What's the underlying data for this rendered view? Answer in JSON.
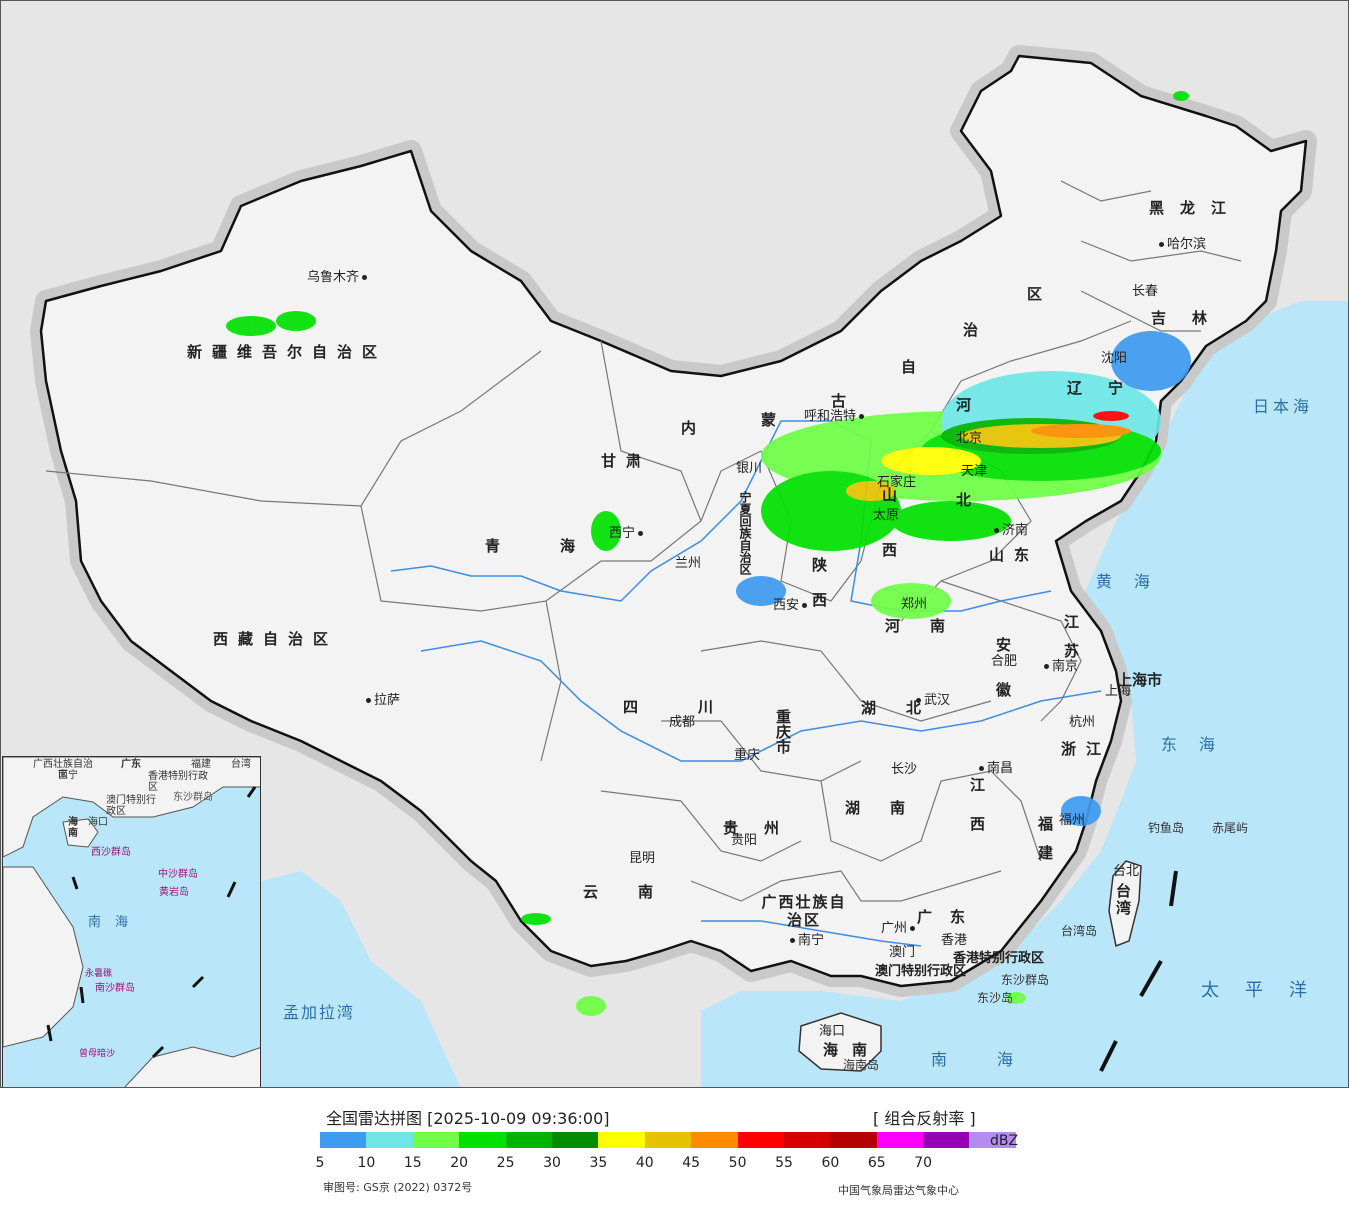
{
  "map": {
    "cities": {
      "urumqi": "乌鲁木齐",
      "lhasa": "拉萨",
      "xining": "西宁",
      "lanzhou": "兰州",
      "yinchuan": "银川",
      "hohhot": "呼和浩特",
      "beijing": "北京",
      "tianjin": "天津",
      "shijiazhuang": "石家庄",
      "taiyuan": "太原",
      "jinan": "济南",
      "zhengzhou": "郑州",
      "xian": "西安",
      "chengdu": "成都",
      "chongqing": "重庆",
      "wuhan": "武汉",
      "hefei": "合肥",
      "nanjing": "南京",
      "shanghai": "上海",
      "hangzhou": "杭州",
      "nanchang": "南昌",
      "changsha": "长沙",
      "guiyang": "贵阳",
      "kunming": "昆明",
      "nanning": "南宁",
      "guangzhou": "广州",
      "hongkong": "香港",
      "macau": "澳门",
      "haikou": "海口",
      "fuzhou": "福州",
      "taipei": "台北",
      "shenyang": "沈阳",
      "changchun": "长春",
      "harbin": "哈尔滨"
    },
    "provinces": {
      "xinjiang": "新疆维吾尔自治区",
      "tibet": "西藏自治区",
      "qinghai": "青海",
      "gansu": "甘肃",
      "nmg_1": "内",
      "nmg_2": "蒙",
      "nmg_3": "古",
      "nmg_4": "自",
      "nmg_5": "治",
      "nmg_6": "区",
      "ningxia": "宁夏回族自治区",
      "shaanxi": "陕西",
      "shanxi": "山西",
      "hebei": "河北",
      "shandong": "山东",
      "henan": "河南",
      "sichuan": "四川",
      "chongqing": "重庆市",
      "hubei": "湖北",
      "anhui": "安徽",
      "jiangsu": "江苏",
      "shanghai": "上海市",
      "zhejiang": "浙江",
      "jiangxi": "江西",
      "hunan": "湖南",
      "guizhou": "贵州",
      "yunnan": "云南",
      "guangxi": "广西壮族自治区",
      "guangdong": "广东",
      "fujian": "福建",
      "taiwan": "台湾",
      "hainan": "海南",
      "heilongjiang": "黑龙江",
      "jilin": "吉林",
      "liaoning": "辽宁",
      "hk_sar": "香港特别行政区",
      "macau_sar": "澳门特别行政区"
    },
    "seas": {
      "japan_sea": "日本海",
      "yellow_sea": "黄海",
      "east_sea": "东海",
      "pacific": "太平洋",
      "south_sea": "南海",
      "bengal": "孟加拉湾"
    },
    "islands": {
      "diaoyu": "钓鱼岛",
      "chiwei": "赤尾屿",
      "taiwan_island": "台湾岛",
      "dongsha_islands": "东沙群岛",
      "dongsha_island": "东沙岛",
      "hainan_island": "海南岛"
    },
    "inset": {
      "guangxi": "广西壮族自治区",
      "guangdong": "广东",
      "fujian": "福建",
      "taiwan": "台湾",
      "nanning": "南宁",
      "hk_sar": "香港特别行政区",
      "macau_sar": "澳门特别行政区",
      "dongsha": "东沙群岛",
      "hainan": "海南",
      "haikou": "海口",
      "xisha": "西沙群岛",
      "zhongsha": "中沙群岛",
      "huangyan": "黄岩岛",
      "south_sea": "南海",
      "nansha": "南沙群岛",
      "yongshu": "永暑礁",
      "zengmu": "曾母暗沙"
    }
  },
  "legend": {
    "title": "全国雷达拼图 [2025-10-09 09:36:00]",
    "product": "[ 组合反射率 ]",
    "unit": "dBZ",
    "review_no": "审图号: GS京 (2022) 0372号",
    "source": "中国气象局雷达气象中心",
    "scale": [
      {
        "value": "5",
        "color": "#3d9bf0"
      },
      {
        "value": "10",
        "color": "#6ee6e6"
      },
      {
        "value": "15",
        "color": "#6eff46"
      },
      {
        "value": "20",
        "color": "#00e100"
      },
      {
        "value": "25",
        "color": "#00b400"
      },
      {
        "value": "30",
        "color": "#008c00"
      },
      {
        "value": "35",
        "color": "#ffff00"
      },
      {
        "value": "40",
        "color": "#e6c300"
      },
      {
        "value": "45",
        "color": "#ff8c00"
      },
      {
        "value": "50",
        "color": "#ff0000"
      },
      {
        "value": "55",
        "color": "#d70000"
      },
      {
        "value": "60",
        "color": "#b40000"
      },
      {
        "value": "65",
        "color": "#ff00ff"
      },
      {
        "value": "70",
        "color": "#9600b4"
      },
      {
        "value": "",
        "color": "#b48cf0"
      }
    ]
  }
}
